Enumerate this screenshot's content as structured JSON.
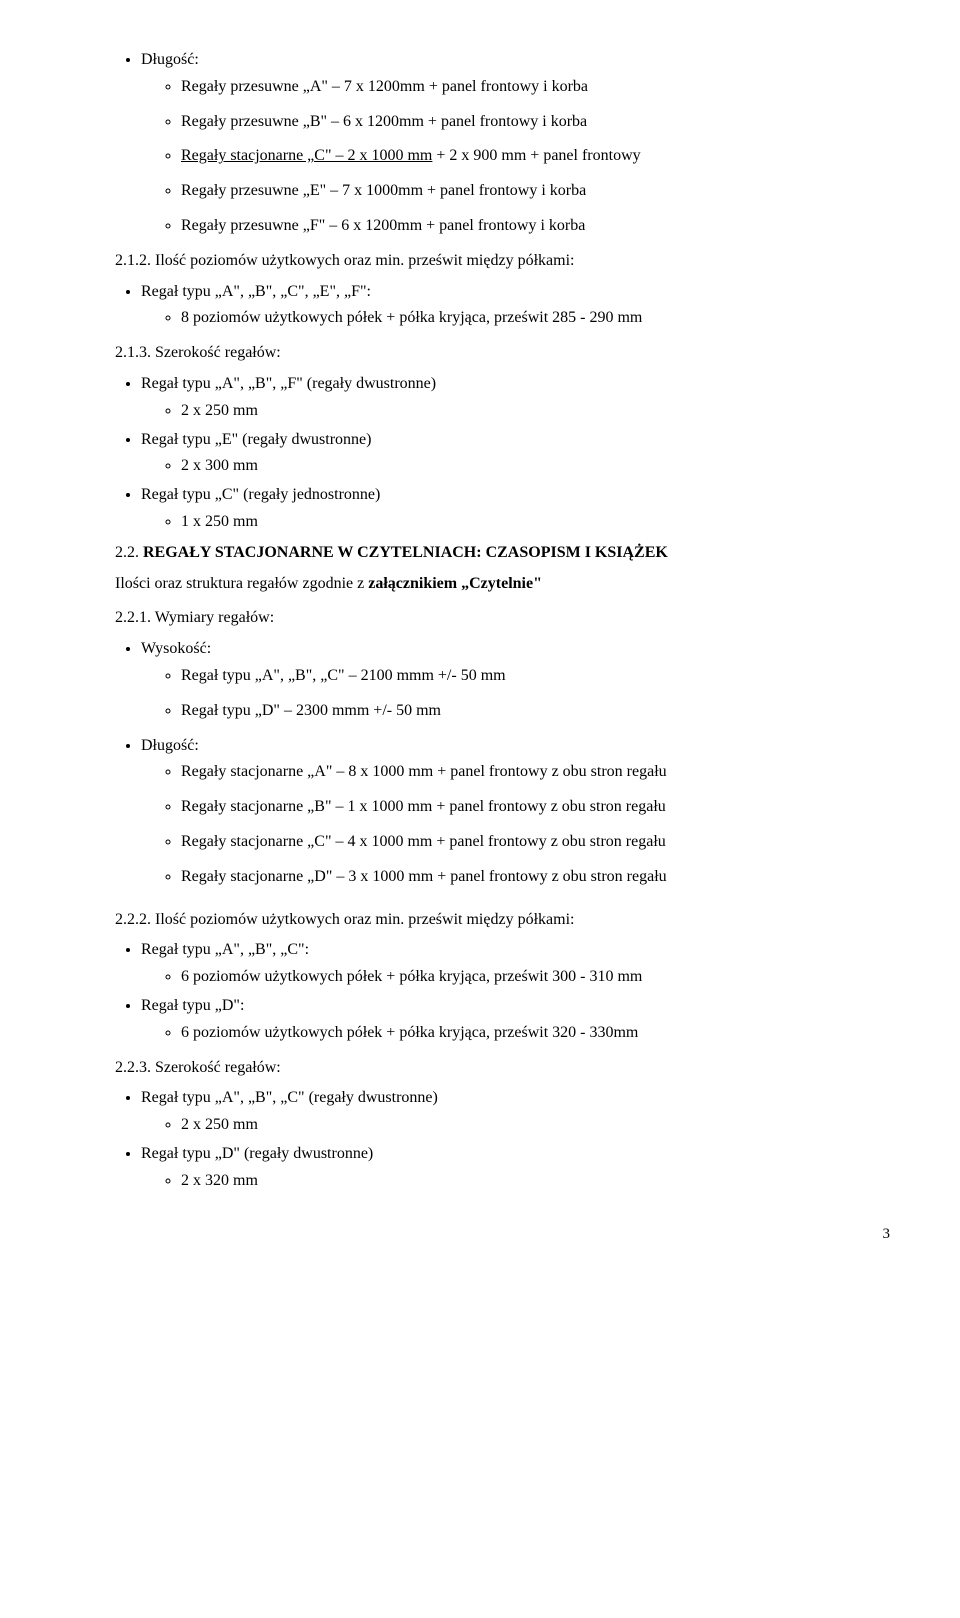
{
  "intro_label": "Długość:",
  "intro_items": [
    "Regały przesuwne „A\" – 7 x 1200mm + panel frontowy i korba",
    "Regały przesuwne „B\" – 6 x 1200mm + panel frontowy i korba",
    "<u>Regały stacjonarne „C\" – 2 x 1000 mm</u> + 2 x 900 mm + panel frontowy",
    "Regały przesuwne „E\" – 7 x 1000mm + panel frontowy i korba",
    "Regały przesuwne „F\" – 6 x 1200mm + panel frontowy i korba"
  ],
  "s212_title": "2.1.2. Ilość poziomów użytkowych oraz min. prześwit między półkami:",
  "s212_bullet": "Regał typu „A\", „B\", „C\", „E\", „F\":",
  "s212_sub": "8 poziomów użytkowych półek + półka kryjąca, prześwit 285 - 290 mm",
  "s213_title": "2.1.3. Szerokość regałów:",
  "s213_items": [
    {
      "label": "Regał typu „A\", „B\", „F\" (regały dwustronne)",
      "sub": "2 x 250 mm"
    },
    {
      "label": "Regał typu „E\" (regały dwustronne)",
      "sub": "2 x 300 mm"
    },
    {
      "label": "Regał typu „C\" (regały jednostronne)",
      "sub": "1 x 250 mm"
    }
  ],
  "s22_title_prefix": "2.2. ",
  "s22_title_bold": "REGAŁY STACJONARNE  W CZYTELNIACH: CZASOPISM I KSIĄŻEK",
  "s22_intro": "Ilości oraz struktura regałów zgodnie z <b>załącznikiem „Czytelnie\"</b>",
  "s221_title": "2.2.1. Wymiary regałów:",
  "s221_h_label": "Wysokość:",
  "s221_h_items": [
    "Regał typu „A\", „B\", „C\" – 2100 mmm +/- 50 mm",
    "Regał typu „D\" – 2300 mmm +/- 50 mm"
  ],
  "s221_d_label": "Długość:",
  "s221_d_items": [
    "Regały stacjonarne „A\" – 8 x 1000 mm + panel frontowy z obu stron regału",
    "Regały stacjonarne „B\" – 1 x 1000 mm + panel frontowy z obu stron regału",
    "Regały stacjonarne „C\" – 4 x 1000 mm + panel frontowy z obu stron regału",
    "Regały stacjonarne „D\" – 3 x 1000 mm + panel frontowy z obu stron regału"
  ],
  "s222_title": "2.2.2. Ilość poziomów użytkowych oraz min. prześwit między półkami:",
  "s222_items": [
    {
      "label": "Regał typu „A\", „B\", „C\":",
      "sub": "6 poziomów użytkowych półek + półka kryjąca, prześwit 300 - 310 mm"
    },
    {
      "label": "Regał typu „D\":",
      "sub": "6 poziomów użytkowych półek + półka kryjąca, prześwit 320 - 330mm"
    }
  ],
  "s223_title": "2.2.3. Szerokość regałów:",
  "s223_items": [
    {
      "label": "Regał typu „A\", „B\", „C\" (regały dwustronne)",
      "sub": "2 x 250 mm"
    },
    {
      "label": "Regał typu „D\" (regały dwustronne)",
      "sub": "2 x 320 mm"
    }
  ],
  "page_num": "3"
}
